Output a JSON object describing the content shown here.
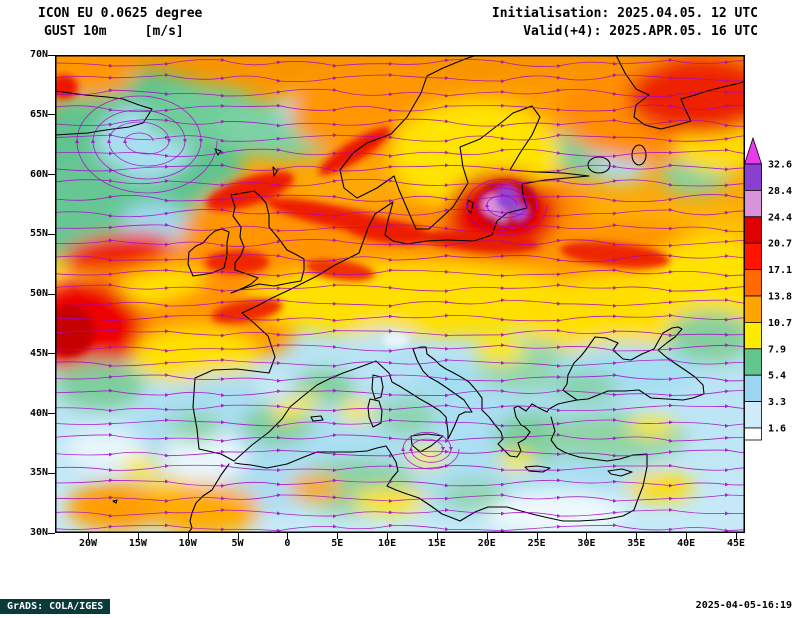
{
  "header": {
    "model_line": "ICON EU 0.0625 degree",
    "field_name": "GUST 10m",
    "units": "[m/s]",
    "init_line": "Initialisation: 2025.04.05. 12 UTC",
    "valid_line": "Valid(+4): 2025.APR.05. 16 UTC"
  },
  "footer": {
    "credit": "GrADS: COLA/IGES",
    "timestamp": "2025-04-05-16:19"
  },
  "chart_data": {
    "type": "heatmap",
    "title": "ICON EU 0.0625 degree GUST 10m [m/s]",
    "region": "Europe 30N-70N, 20W-45E",
    "overlays": [
      "wind gust filled contours",
      "wind streamlines with arrows"
    ],
    "x_axis": {
      "ticks": [
        "20W",
        "15W",
        "10W",
        "5W",
        "0",
        "5E",
        "10E",
        "15E",
        "20E",
        "25E",
        "30E",
        "35E",
        "40E",
        "45E"
      ]
    },
    "y_axis": {
      "ticks": [
        "30N",
        "35N",
        "40N",
        "45N",
        "50N",
        "55N",
        "60N",
        "65N",
        "70N"
      ]
    },
    "colorbar": {
      "units": "m/s",
      "levels": [
        1.6,
        3.3,
        5.4,
        7.9,
        10.7,
        13.8,
        17.1,
        20.7,
        24.4,
        28.4,
        32.6
      ],
      "colors": [
        "#ffffff",
        "#cfeaf8",
        "#9cd4f2",
        "#63c68e",
        "#ffeb00",
        "#ffa400",
        "#ff6b00",
        "#ff1400",
        "#df0000",
        "#d993dd",
        "#8a3fd0",
        "#eb3aeb"
      ]
    }
  }
}
